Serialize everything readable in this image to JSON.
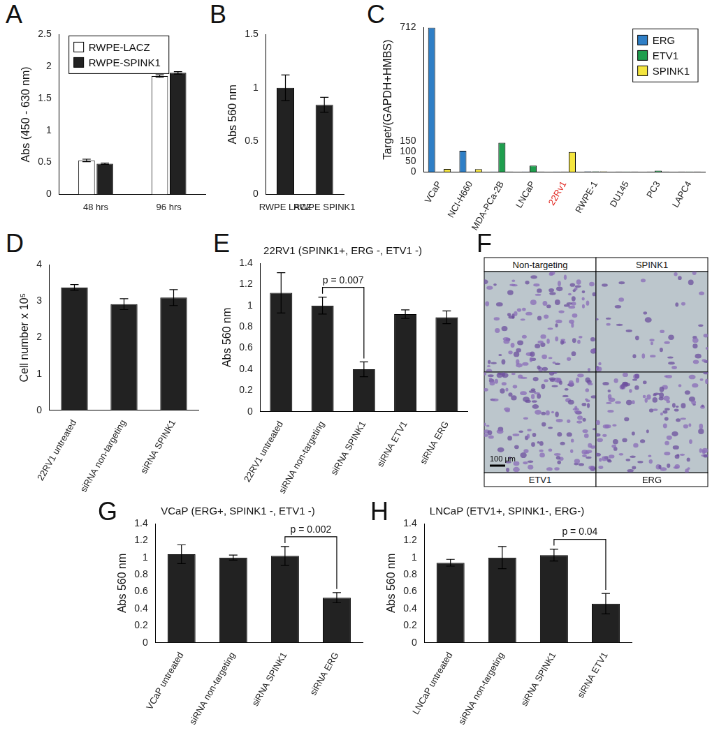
{
  "chart_data": [
    {
      "panel": "A",
      "type": "bar",
      "y_label": "Abs (450 - 630 nm)",
      "categories": [
        "48 hrs",
        "96 hrs"
      ],
      "series": [
        {
          "name": "RWPE-LACZ",
          "color": "#ffffff",
          "values": [
            0.53,
            1.85
          ],
          "errors": [
            0.02,
            0.02
          ]
        },
        {
          "name": "RWPE-SPINK1",
          "color": "#222222",
          "values": [
            0.48,
            1.9
          ],
          "errors": [
            0.01,
            0.02
          ]
        }
      ],
      "ylim": [
        0,
        2.5
      ],
      "yticks": [
        0,
        0.5,
        1,
        1.5,
        2,
        2.5
      ],
      "grid": false,
      "legend": "upper left"
    },
    {
      "panel": "B",
      "type": "bar",
      "y_label": "Abs 560 nm",
      "categories": [
        "RWPE LACZ",
        "RWPE SPINK1"
      ],
      "values": [
        1.0,
        0.84
      ],
      "errors": [
        0.12,
        0.07
      ],
      "color": "#222222",
      "ylim": [
        0,
        1.5
      ],
      "yticks": [
        0,
        0.5,
        1,
        1.5
      ],
      "grid": false
    },
    {
      "panel": "C",
      "type": "bar",
      "y_label": "Target/(GAPDH+HMBS)",
      "categories": [
        "VCaP",
        "NCI-H660",
        "MDA-PCa-2B",
        "LNCaP",
        "22Rv1",
        "RWPE-1",
        "DU145",
        "PC3",
        "LAPC4"
      ],
      "series": [
        {
          "name": "ERG",
          "color": "#2f7fc6",
          "values": [
            712,
            103,
            1,
            1,
            1,
            2,
            0.5,
            0.5,
            0.5
          ]
        },
        {
          "name": "ETV1",
          "color": "#1f9e4e",
          "values": [
            0.5,
            0.5,
            143,
            30,
            0.5,
            2,
            1,
            5,
            1
          ]
        },
        {
          "name": "SPINK1",
          "color": "#f4e53f",
          "values": [
            14,
            13,
            0.5,
            0.5,
            97,
            2,
            0.5,
            0.5,
            0.5
          ]
        }
      ],
      "ylim": [
        0,
        712
      ],
      "yticks": [
        0,
        50,
        100,
        150,
        712
      ],
      "grid": false,
      "legend": "upper right"
    },
    {
      "panel": "D",
      "type": "bar",
      "y_label": "Cell number x 10⁵",
      "categories": [
        "22RV1 untreated",
        "siRNA non-targeting",
        "siRNA SPINK1"
      ],
      "values": [
        3.38,
        2.92,
        3.1
      ],
      "errors": [
        0.08,
        0.15,
        0.22
      ],
      "color": "#222222",
      "ylim": [
        0,
        4
      ],
      "yticks": [
        0,
        1,
        2,
        3,
        4
      ],
      "grid": false
    },
    {
      "panel": "E",
      "type": "bar",
      "title": "22RV1 (SPINK1+, ERG -, ETV1 -)",
      "y_label": "Abs 560 nm",
      "categories": [
        "22RV1 untreated",
        "siRNA non-targeting",
        "siRNA SPINK1",
        "siRNA ETV1",
        "siRNA ERG"
      ],
      "values": [
        1.12,
        1.0,
        0.4,
        0.92,
        0.89
      ],
      "errors": [
        0.19,
        0.08,
        0.07,
        0.04,
        0.06
      ],
      "color": "#222222",
      "ylim": [
        0,
        1.4
      ],
      "yticks": [
        0,
        0.2,
        0.4,
        0.6,
        0.8,
        1,
        1.2,
        1.4
      ],
      "grid": false,
      "annotations": [
        {
          "text": "p = 0.007",
          "between": [
            "siRNA non-targeting",
            "siRNA SPINK1"
          ]
        }
      ]
    },
    {
      "panel": "G",
      "type": "bar",
      "title": "VCaP (ERG+, SPINK1 -, ETV1 -)",
      "y_label": "Abs 560 nm",
      "categories": [
        "VCaP untreated",
        "siRNA non-targeting",
        "siRNA SPINK1",
        "siRNA ERG"
      ],
      "values": [
        1.04,
        1.0,
        1.02,
        0.53
      ],
      "errors": [
        0.11,
        0.03,
        0.11,
        0.06
      ],
      "color": "#222222",
      "ylim": [
        0,
        1.4
      ],
      "yticks": [
        0,
        0.2,
        0.4,
        0.6,
        0.8,
        1,
        1.2,
        1.4
      ],
      "grid": false,
      "annotations": [
        {
          "text": "p = 0.002",
          "between": [
            "siRNA SPINK1",
            "siRNA ERG"
          ]
        }
      ]
    },
    {
      "panel": "H",
      "type": "bar",
      "title": "LNCaP (ETV1+, SPINK1-, ERG-)",
      "y_label": "Abs 560 nm",
      "categories": [
        "LNCaP untreated",
        "siRNA non-targeting",
        "siRNA SPINK1",
        "siRNA ETV1"
      ],
      "values": [
        0.94,
        1.0,
        1.03,
        0.46
      ],
      "errors": [
        0.04,
        0.13,
        0.07,
        0.12
      ],
      "color": "#222222",
      "ylim": [
        0,
        1.4
      ],
      "yticks": [
        0,
        0.2,
        0.4,
        0.6,
        0.8,
        1,
        1.2,
        1.4
      ],
      "grid": false,
      "annotations": [
        {
          "text": "p = 0.04",
          "between": [
            "siRNA SPINK1",
            "siRNA ETV1"
          ]
        }
      ]
    }
  ],
  "image_panel": {
    "panel": "F",
    "type": "image",
    "images": [
      "Non-targeting",
      "SPINK1",
      "ETV1",
      "ERG"
    ],
    "scale_bar": "100 μm"
  }
}
